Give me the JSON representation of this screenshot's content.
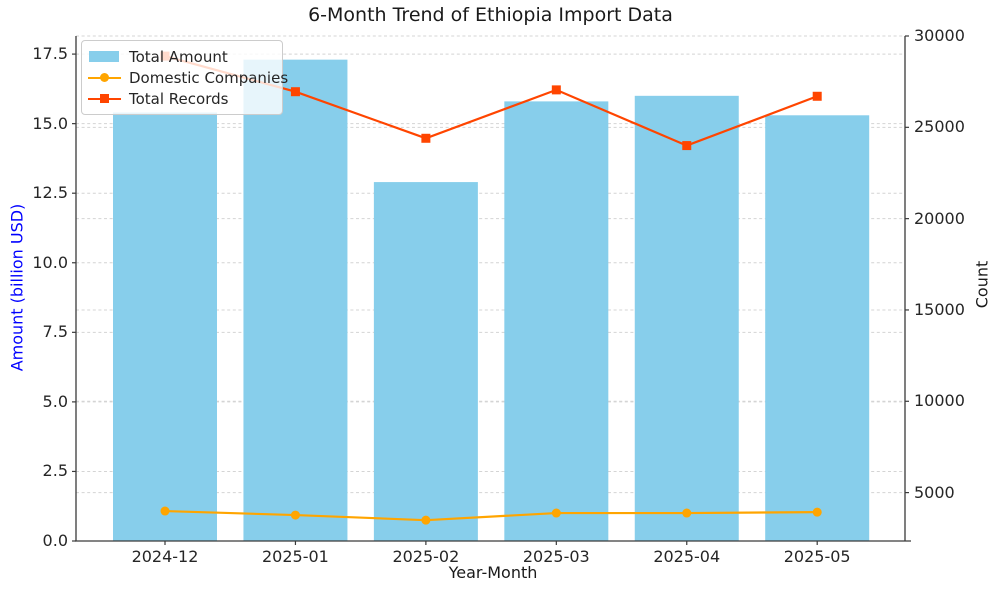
{
  "title": "6-Month Trend of Ethiopia Import Data",
  "chart_data": {
    "type": "combo_bar_line",
    "title": "6-Month Trend of Ethiopia Import Data",
    "xlabel": "Year-Month",
    "ylabel_left": "Amount (billion USD)",
    "ylabel_right": "Count",
    "categories": [
      "2024-12",
      "2025-01",
      "2025-02",
      "2025-03",
      "2025-04",
      "2025-05"
    ],
    "series": [
      {
        "name": "Total Amount",
        "type": "bar",
        "axis": "left",
        "color": "#87CEEB",
        "values": [
          15.4,
          17.3,
          12.9,
          15.8,
          16.0,
          15.3
        ]
      },
      {
        "name": "Domestic Companies",
        "type": "line",
        "marker": "circle",
        "axis": "right",
        "color": "#FFA500",
        "values": [
          3990,
          3770,
          3490,
          3880,
          3880,
          3930
        ]
      },
      {
        "name": "Total Records",
        "type": "line",
        "marker": "square",
        "axis": "right",
        "color": "#FF4500",
        "values": [
          28900,
          26950,
          24400,
          27050,
          24000,
          26700
        ]
      }
    ],
    "axes": {
      "left": {
        "range": [
          0,
          18.15
        ],
        "ticks": [
          0.0,
          2.5,
          5.0,
          7.5,
          10.0,
          12.5,
          15.0,
          17.5
        ],
        "tick_labels": [
          "0.0",
          "2.5",
          "5.0",
          "7.5",
          "10.0",
          "12.5",
          "15.0",
          "17.5"
        ],
        "label_color": "#0000FF"
      },
      "right": {
        "range": [
          2350,
          30000
        ],
        "ticks": [
          5000,
          10000,
          15000,
          20000,
          25000,
          30000
        ],
        "tick_labels": [
          "5000",
          "10000",
          "15000",
          "20000",
          "25000",
          "30000"
        ],
        "label_color": "#1a1a1a"
      }
    },
    "grid": true,
    "grid_color": "#d4d4d4",
    "spine_color": "#3a3a3a",
    "legend": {
      "position": "upper-left",
      "items": [
        "Total Amount",
        "Domestic Companies",
        "Total Records"
      ]
    }
  }
}
